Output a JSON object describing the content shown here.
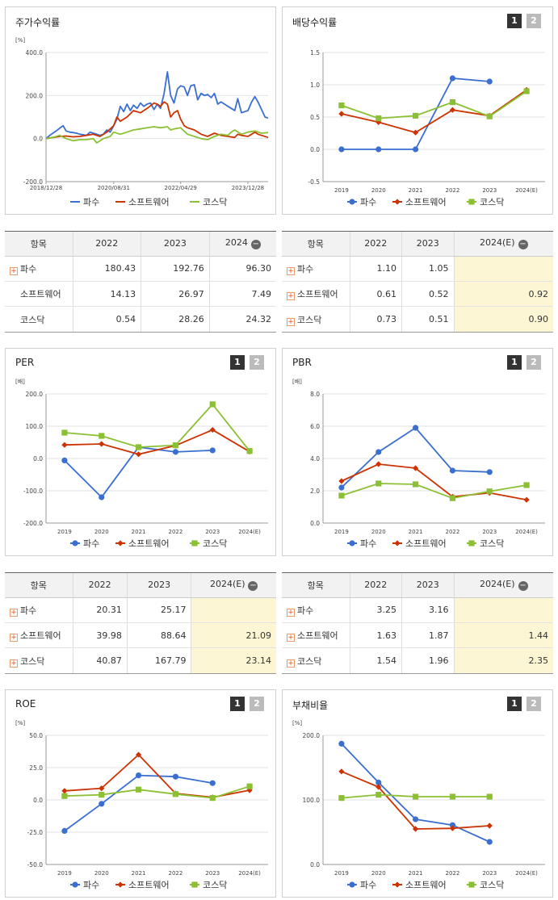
{
  "minus_symbol": "−",
  "panels": {
    "stock": {
      "title": "주가수익률",
      "unit": "[%]"
    },
    "div": {
      "title": "배당수익률",
      "page1": "1",
      "page2": "2"
    },
    "per": {
      "title": "PER",
      "unit": "[배]",
      "page1": "1",
      "page2": "2"
    },
    "pbr": {
      "title": "PBR",
      "unit": "[배]",
      "page1": "1",
      "page2": "2"
    },
    "roe": {
      "title": "ROE",
      "unit": "[%]",
      "page1": "1",
      "page2": "2"
    },
    "debt": {
      "title": "부채비율",
      "unit": "[%]",
      "page1": "1",
      "page2": "2"
    }
  },
  "tables": {
    "stock": {
      "headers": [
        "항목",
        "2022",
        "2023",
        "2024"
      ],
      "rows": [
        {
          "label": "파수",
          "plus": true,
          "values": [
            "180.43",
            "192.76",
            "96.30"
          ]
        },
        {
          "label": "소프트웨어",
          "plus": false,
          "values": [
            "14.13",
            "26.97",
            "7.49"
          ]
        },
        {
          "label": "코스닥",
          "plus": false,
          "values": [
            "0.54",
            "28.26",
            "24.32"
          ]
        }
      ]
    },
    "div": {
      "headers": [
        "항목",
        "2022",
        "2023",
        "2024(E)"
      ],
      "rows": [
        {
          "label": "파수",
          "plus": true,
          "values": [
            "1.10",
            "1.05",
            ""
          ]
        },
        {
          "label": "소프트웨어",
          "plus": true,
          "values": [
            "0.61",
            "0.52",
            "0.92"
          ]
        },
        {
          "label": "코스닥",
          "plus": true,
          "values": [
            "0.73",
            "0.51",
            "0.90"
          ]
        }
      ]
    },
    "per": {
      "headers": [
        "항목",
        "2022",
        "2023",
        "2024(E)"
      ],
      "rows": [
        {
          "label": "파수",
          "plus": true,
          "values": [
            "20.31",
            "25.17",
            ""
          ]
        },
        {
          "label": "소프트웨어",
          "plus": true,
          "values": [
            "39.98",
            "88.64",
            "21.09"
          ]
        },
        {
          "label": "코스닥",
          "plus": true,
          "values": [
            "40.87",
            "167.79",
            "23.14"
          ]
        }
      ]
    },
    "pbr": {
      "headers": [
        "항목",
        "2022",
        "2023",
        "2024(E)"
      ],
      "rows": [
        {
          "label": "파수",
          "plus": true,
          "values": [
            "3.25",
            "3.16",
            ""
          ]
        },
        {
          "label": "소프트웨어",
          "plus": true,
          "values": [
            "1.63",
            "1.87",
            "1.44"
          ]
        },
        {
          "label": "코스닥",
          "plus": true,
          "values": [
            "1.54",
            "1.96",
            "2.35"
          ]
        }
      ]
    }
  },
  "chart_data": [
    {
      "id": "stock",
      "type": "line",
      "title": "주가수익률",
      "ylabel": "[%]",
      "ylim": [
        -200,
        400
      ],
      "yticks": [
        "400.0",
        "200.0",
        "0.0",
        "-200.0"
      ],
      "yticks_values": [
        400,
        200,
        0,
        -200
      ],
      "x_tick_labels": [
        "2018/12/28",
        "2020/08/31",
        "2022/04/29",
        "2023/12/28"
      ],
      "x_tick_dates": [
        "2018-12-28",
        "2020-08-31",
        "2022-04-29",
        "2023-12-28"
      ],
      "x_range": [
        "2018-12-28",
        "2024-06-28"
      ],
      "legend_position": "bottom",
      "series": [
        {
          "name": "파수",
          "color": "#3a6fd0",
          "marker": "none",
          "x": [
            "2018-12-28",
            "2019-01-31",
            "2019-02-28",
            "2019-03-29",
            "2019-04-30",
            "2019-05-31",
            "2019-06-28",
            "2019-07-31",
            "2019-08-30",
            "2019-09-30",
            "2019-10-31",
            "2019-11-29",
            "2019-12-30",
            "2020-01-31",
            "2020-02-28",
            "2020-03-31",
            "2020-04-29",
            "2020-05-29",
            "2020-06-30",
            "2020-07-31",
            "2020-08-31",
            "2020-09-29",
            "2020-10-30",
            "2020-11-30",
            "2020-12-30",
            "2021-01-29",
            "2021-02-26",
            "2021-03-31",
            "2021-04-30",
            "2021-05-31",
            "2021-06-30",
            "2021-07-30",
            "2021-08-31",
            "2021-09-30",
            "2021-10-29",
            "2021-11-30",
            "2021-12-30",
            "2022-01-28",
            "2022-02-28",
            "2022-03-31",
            "2022-04-29",
            "2022-05-31",
            "2022-06-30",
            "2022-07-29",
            "2022-08-31",
            "2022-09-30",
            "2022-10-31",
            "2022-11-30",
            "2022-12-29",
            "2023-01-31",
            "2023-02-28",
            "2023-03-31",
            "2023-04-28",
            "2023-05-31",
            "2023-06-30",
            "2023-07-31",
            "2023-08-31",
            "2023-09-27",
            "2023-10-31",
            "2023-11-30",
            "2023-12-28",
            "2024-01-31",
            "2024-02-29",
            "2024-03-29",
            "2024-04-30",
            "2024-05-31",
            "2024-06-28"
          ],
          "values": [
            0,
            15,
            25,
            35,
            48,
            60,
            35,
            30,
            28,
            25,
            20,
            18,
            15,
            30,
            25,
            20,
            15,
            20,
            40,
            30,
            60,
            90,
            150,
            125,
            160,
            130,
            155,
            140,
            165,
            150,
            160,
            165,
            135,
            160,
            140,
            210,
            310,
            200,
            165,
            230,
            245,
            240,
            200,
            245,
            250,
            180,
            210,
            200,
            205,
            190,
            210,
            160,
            170,
            160,
            150,
            140,
            130,
            185,
            120,
            125,
            130,
            170,
            195,
            170,
            135,
            100,
            95
          ]
        },
        {
          "name": "소프트웨어",
          "color": "#cc3300",
          "marker": "none",
          "x": [
            "2018-12-28",
            "2019-02-28",
            "2019-04-30",
            "2019-06-28",
            "2019-08-30",
            "2019-10-31",
            "2019-12-30",
            "2020-02-28",
            "2020-04-29",
            "2020-06-30",
            "2020-08-31",
            "2020-09-29",
            "2020-10-30",
            "2020-12-30",
            "2021-02-26",
            "2021-04-30",
            "2021-06-30",
            "2021-08-31",
            "2021-09-30",
            "2021-10-29",
            "2021-11-30",
            "2021-12-30",
            "2022-01-28",
            "2022-02-28",
            "2022-03-31",
            "2022-04-29",
            "2022-05-31",
            "2022-06-30",
            "2022-08-31",
            "2022-10-31",
            "2022-12-29",
            "2023-02-28",
            "2023-04-28",
            "2023-06-30",
            "2023-08-31",
            "2023-09-27",
            "2023-10-31",
            "2023-12-28",
            "2024-01-31",
            "2024-02-29",
            "2024-03-29",
            "2024-04-30",
            "2024-06-28"
          ],
          "values": [
            0,
            5,
            10,
            12,
            8,
            10,
            15,
            20,
            10,
            30,
            60,
            100,
            80,
            100,
            130,
            120,
            140,
            165,
            160,
            150,
            170,
            160,
            100,
            120,
            130,
            90,
            60,
            50,
            40,
            20,
            10,
            25,
            15,
            10,
            5,
            20,
            15,
            10,
            20,
            30,
            20,
            15,
            5
          ]
        },
        {
          "name": "코스닥",
          "color": "#8cc034",
          "marker": "none",
          "x": [
            "2018-12-28",
            "2019-02-28",
            "2019-04-30",
            "2019-06-28",
            "2019-08-30",
            "2019-10-31",
            "2019-12-30",
            "2020-02-28",
            "2020-03-31",
            "2020-05-29",
            "2020-07-31",
            "2020-08-31",
            "2020-10-30",
            "2020-12-30",
            "2021-02-26",
            "2021-04-30",
            "2021-06-30",
            "2021-08-31",
            "2021-10-29",
            "2021-12-30",
            "2022-01-28",
            "2022-02-28",
            "2022-04-29",
            "2022-06-30",
            "2022-08-31",
            "2022-10-31",
            "2022-12-29",
            "2023-02-28",
            "2023-04-28",
            "2023-06-30",
            "2023-07-31",
            "2023-08-31",
            "2023-10-31",
            "2023-12-28",
            "2024-02-29",
            "2024-04-30",
            "2024-06-28"
          ],
          "values": [
            0,
            5,
            15,
            0,
            -10,
            -5,
            -5,
            0,
            -20,
            0,
            10,
            30,
            20,
            30,
            40,
            45,
            50,
            55,
            50,
            55,
            40,
            45,
            50,
            20,
            10,
            0,
            -5,
            10,
            20,
            15,
            30,
            40,
            20,
            30,
            35,
            25,
            28
          ]
        }
      ]
    },
    {
      "id": "div",
      "type": "line",
      "title": "배당수익률",
      "ylim": [
        -0.5,
        1.5
      ],
      "yticks": [
        "1.5",
        "1.0",
        "0.5",
        "0.0",
        "-0.5"
      ],
      "yticks_values": [
        1.5,
        1.0,
        0.5,
        0.0,
        -0.5
      ],
      "categories": [
        "2019",
        "2020",
        "2021",
        "2022",
        "2023",
        "2024(E)"
      ],
      "legend_position": "bottom",
      "series": [
        {
          "name": "파수",
          "color": "#3a6fd0",
          "marker": "circle",
          "values": [
            0.0,
            0.0,
            0.0,
            1.1,
            1.05,
            null
          ]
        },
        {
          "name": "소프트웨어",
          "color": "#cc3300",
          "marker": "diamond",
          "values": [
            0.55,
            0.42,
            0.26,
            0.61,
            0.52,
            0.92
          ]
        },
        {
          "name": "코스닥",
          "color": "#8cc034",
          "marker": "square",
          "values": [
            0.68,
            0.48,
            0.52,
            0.73,
            0.51,
            0.9
          ]
        }
      ]
    },
    {
      "id": "per",
      "type": "line",
      "title": "PER",
      "ylabel": "[배]",
      "ylim": [
        -200,
        200
      ],
      "yticks": [
        "200.0",
        "100.0",
        "0.0",
        "-100.0",
        "-200.0"
      ],
      "yticks_values": [
        200,
        100,
        0,
        -100,
        -200
      ],
      "categories": [
        "2019",
        "2020",
        "2021",
        "2022",
        "2023",
        "2024(E)"
      ],
      "legend_position": "bottom",
      "series": [
        {
          "name": "파수",
          "color": "#3a6fd0",
          "marker": "circle",
          "values": [
            -6,
            -120,
            35,
            20.31,
            25.17,
            null
          ]
        },
        {
          "name": "소프트웨어",
          "color": "#cc3300",
          "marker": "diamond",
          "values": [
            42,
            45,
            13,
            39.98,
            88.64,
            21.09
          ]
        },
        {
          "name": "코스닥",
          "color": "#8cc034",
          "marker": "square",
          "values": [
            80,
            70,
            35,
            40.87,
            167.79,
            23.14
          ]
        }
      ]
    },
    {
      "id": "pbr",
      "type": "line",
      "title": "PBR",
      "ylabel": "[배]",
      "ylim": [
        0,
        8
      ],
      "yticks": [
        "8.0",
        "6.0",
        "4.0",
        "2.0",
        "0.0"
      ],
      "yticks_values": [
        8,
        6,
        4,
        2,
        0
      ],
      "categories": [
        "2019",
        "2020",
        "2021",
        "2022",
        "2023",
        "2024(E)"
      ],
      "legend_position": "bottom",
      "series": [
        {
          "name": "파수",
          "color": "#3a6fd0",
          "marker": "circle",
          "values": [
            2.2,
            4.4,
            5.9,
            3.25,
            3.16,
            null
          ]
        },
        {
          "name": "소프트웨어",
          "color": "#cc3300",
          "marker": "diamond",
          "values": [
            2.6,
            3.65,
            3.4,
            1.63,
            1.87,
            1.44
          ]
        },
        {
          "name": "코스닥",
          "color": "#8cc034",
          "marker": "square",
          "values": [
            1.7,
            2.45,
            2.4,
            1.54,
            1.96,
            2.35
          ]
        }
      ]
    },
    {
      "id": "roe",
      "type": "line",
      "title": "ROE",
      "ylabel": "[%]",
      "ylim": [
        -50,
        50
      ],
      "yticks": [
        "50.0",
        "25.0",
        "0.0",
        "-25.0",
        "-50.0"
      ],
      "yticks_values": [
        50,
        25,
        0,
        -25,
        -50
      ],
      "categories": [
        "2019",
        "2020",
        "2021",
        "2022",
        "2023",
        "2024(E)"
      ],
      "legend_position": "bottom",
      "series": [
        {
          "name": "파수",
          "color": "#3a6fd0",
          "marker": "circle",
          "values": [
            -24,
            -3,
            19,
            18,
            13,
            null
          ]
        },
        {
          "name": "소프트웨어",
          "color": "#cc3300",
          "marker": "diamond",
          "values": [
            7,
            9,
            35,
            5,
            2,
            7.5
          ]
        },
        {
          "name": "코스닥",
          "color": "#8cc034",
          "marker": "square",
          "values": [
            3,
            4,
            8,
            4.5,
            1.5,
            10.5
          ]
        }
      ]
    },
    {
      "id": "debt",
      "type": "line",
      "title": "부채비율",
      "ylabel": "[%]",
      "ylim": [
        0,
        200
      ],
      "yticks": [
        "200.0",
        "100.0",
        "0.0"
      ],
      "yticks_values": [
        200,
        100,
        0
      ],
      "categories": [
        "2019",
        "2020",
        "2021",
        "2022",
        "2023",
        "2024(E)"
      ],
      "legend_position": "bottom",
      "series": [
        {
          "name": "파수",
          "color": "#3a6fd0",
          "marker": "circle",
          "values": [
            187,
            127,
            70,
            61,
            35,
            null
          ]
        },
        {
          "name": "소프트웨어",
          "color": "#cc3300",
          "marker": "diamond",
          "values": [
            144,
            120,
            55,
            56,
            60,
            null
          ]
        },
        {
          "name": "코스닥",
          "color": "#8cc034",
          "marker": "square",
          "values": [
            103,
            108,
            105,
            105,
            105,
            null
          ]
        }
      ]
    }
  ]
}
